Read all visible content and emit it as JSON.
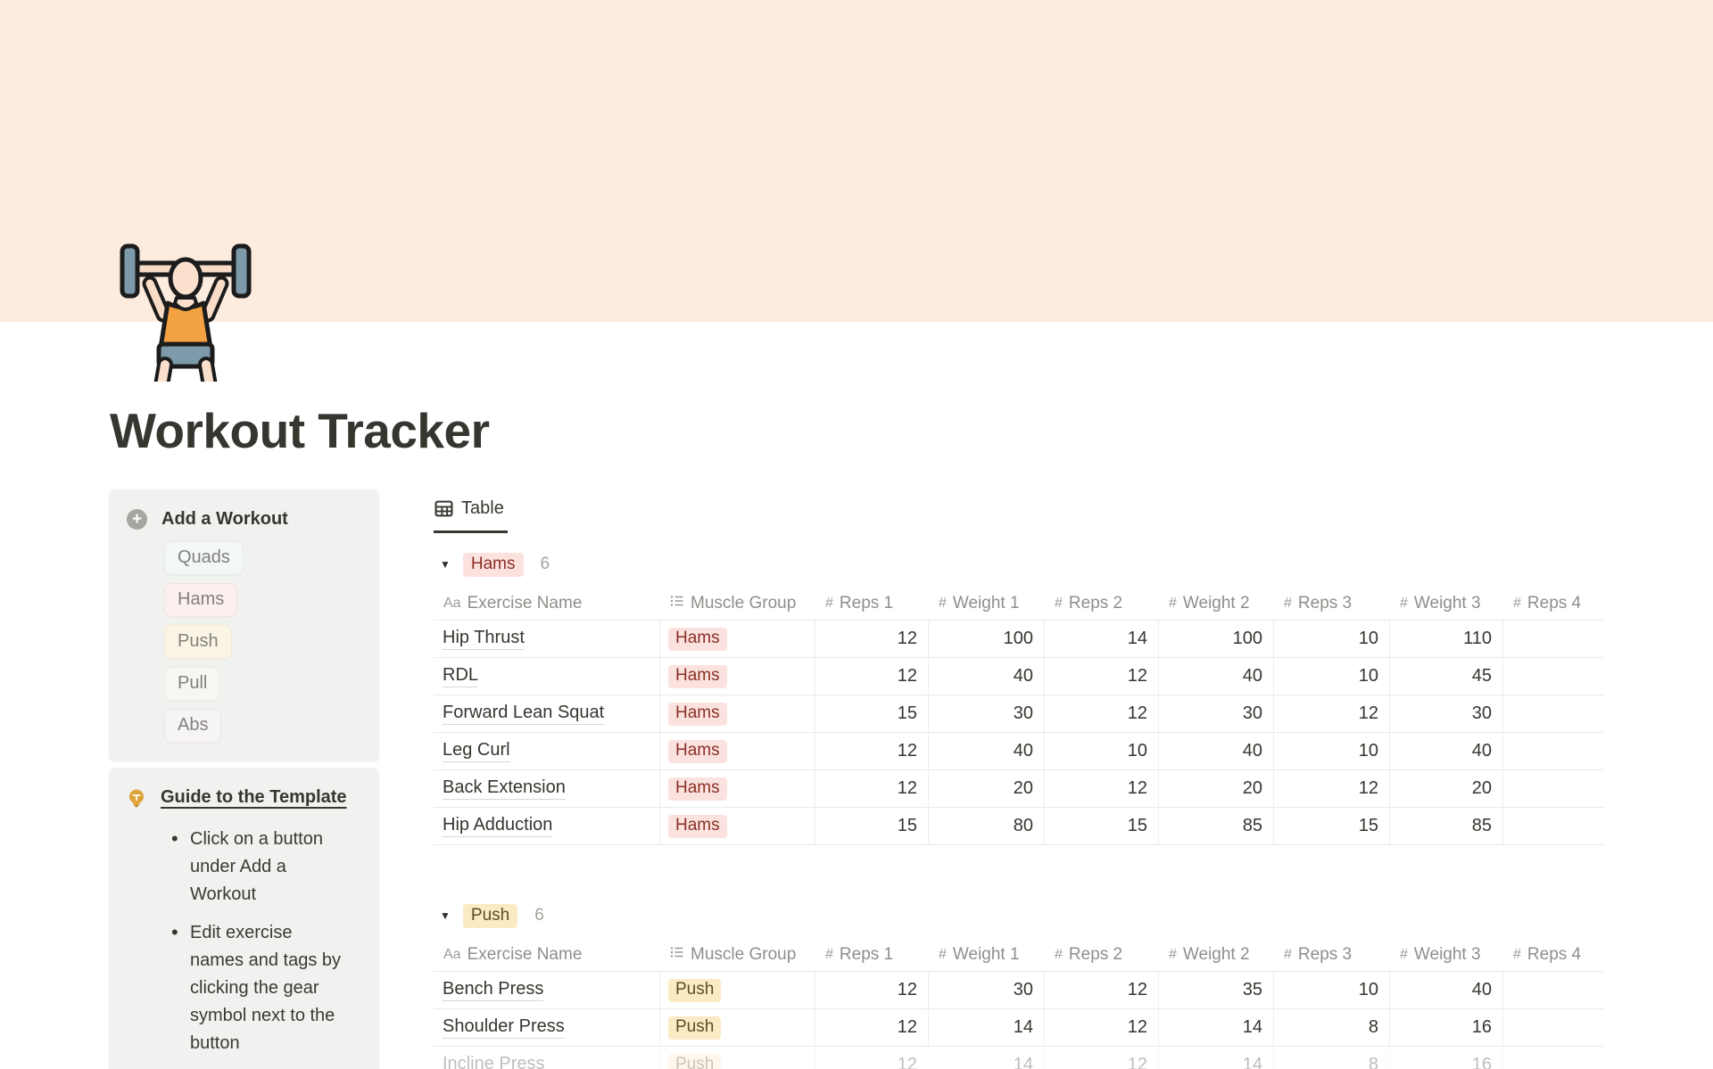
{
  "page": {
    "title": "Workout Tracker",
    "icon": "weightlifter squatting with barbell"
  },
  "colors": {
    "cover": "#FDEBDE",
    "sidebar_block_bg": "#F1F1EF",
    "text_primary": "#37352F",
    "text_gray": "#8F8E8A"
  },
  "view_tab": {
    "label": "Table"
  },
  "sidebar": {
    "add_workout": {
      "title": "Add a Workout",
      "buttons": [
        {
          "label": "Quads",
          "bg": "#F3F7F8",
          "border": "#E4EBEC"
        },
        {
          "label": "Hams",
          "bg": "#FCF0EF",
          "border": "#F3E1DF"
        },
        {
          "label": "Push",
          "bg": "#FBF5E6",
          "border": "#F0E8D2"
        },
        {
          "label": "Pull",
          "bg": "#F4F7F2",
          "border": "#E6ECE3"
        },
        {
          "label": "Abs",
          "bg": "#F7F4F7",
          "border": "#EBE5EC"
        }
      ]
    },
    "guide": {
      "title": "Guide to the Template",
      "bullets": [
        "Click on a button under Add a Workout",
        "Edit exercise names and tags by clicking the gear symbol next to the button"
      ]
    }
  },
  "table": {
    "columns": [
      {
        "label": "Exercise Name",
        "icon": "Aa"
      },
      {
        "label": "Muscle Group",
        "icon": "list"
      },
      {
        "label": "Reps 1",
        "icon": "#"
      },
      {
        "label": "Weight 1",
        "icon": "#"
      },
      {
        "label": "Reps 2",
        "icon": "#"
      },
      {
        "label": "Weight 2",
        "icon": "#"
      },
      {
        "label": "Reps 3",
        "icon": "#"
      },
      {
        "label": "Weight 3",
        "icon": "#"
      },
      {
        "label": "Reps 4",
        "icon": "#"
      }
    ],
    "groups": [
      {
        "name": "Hams",
        "count": "6",
        "tag_bg": "#FBE2DE",
        "tag_color": "#8A2F26",
        "rows": [
          {
            "name": "Hip Thrust",
            "tag": "Hams",
            "values": [
              "12",
              "100",
              "14",
              "100",
              "10",
              "110",
              ""
            ]
          },
          {
            "name": "RDL",
            "tag": "Hams",
            "values": [
              "12",
              "40",
              "12",
              "40",
              "10",
              "45",
              ""
            ]
          },
          {
            "name": "Forward Lean Squat",
            "tag": "Hams",
            "values": [
              "15",
              "30",
              "12",
              "30",
              "12",
              "30",
              ""
            ]
          },
          {
            "name": "Leg Curl",
            "tag": "Hams",
            "values": [
              "12",
              "40",
              "10",
              "40",
              "10",
              "40",
              ""
            ]
          },
          {
            "name": "Back Extension",
            "tag": "Hams",
            "values": [
              "12",
              "20",
              "12",
              "20",
              "12",
              "20",
              ""
            ]
          },
          {
            "name": "Hip Adduction",
            "tag": "Hams",
            "values": [
              "15",
              "80",
              "15",
              "85",
              "15",
              "85",
              ""
            ]
          }
        ]
      },
      {
        "name": "Push",
        "count": "6",
        "tag_bg": "#FBEBC4",
        "tag_color": "#5F4B27",
        "rows": [
          {
            "name": "Bench Press",
            "tag": "Push",
            "values": [
              "12",
              "30",
              "12",
              "35",
              "10",
              "40",
              ""
            ]
          },
          {
            "name": "Shoulder Press",
            "tag": "Push",
            "values": [
              "12",
              "14",
              "12",
              "14",
              "8",
              "16",
              ""
            ]
          },
          {
            "name": "Incline Press",
            "tag": "Push",
            "values": [
              "12",
              "14",
              "12",
              "14",
              "8",
              "16",
              ""
            ],
            "partial": true
          }
        ]
      }
    ]
  }
}
